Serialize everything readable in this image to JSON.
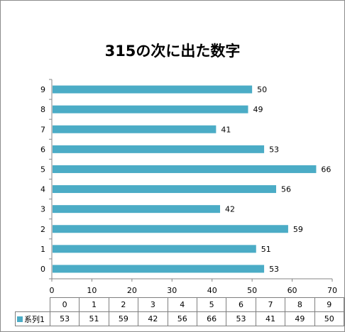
{
  "colors": {
    "bar": "#4bacc6",
    "axis": "#868686"
  },
  "chart_data": {
    "type": "bar",
    "orientation": "horizontal",
    "title": "315の次に出た数字",
    "categories": [
      "0",
      "1",
      "2",
      "3",
      "4",
      "5",
      "6",
      "7",
      "8",
      "9"
    ],
    "series": [
      {
        "name": "系列1",
        "values": [
          53,
          51,
          59,
          42,
          56,
          66,
          53,
          41,
          49,
          50
        ]
      }
    ],
    "xlim": [
      0,
      70
    ],
    "x_ticks": [
      "0",
      "10",
      "20",
      "30",
      "40",
      "50",
      "60",
      "70"
    ],
    "grid": false,
    "data_labels": true,
    "data_table": true,
    "legend": "data-table"
  }
}
